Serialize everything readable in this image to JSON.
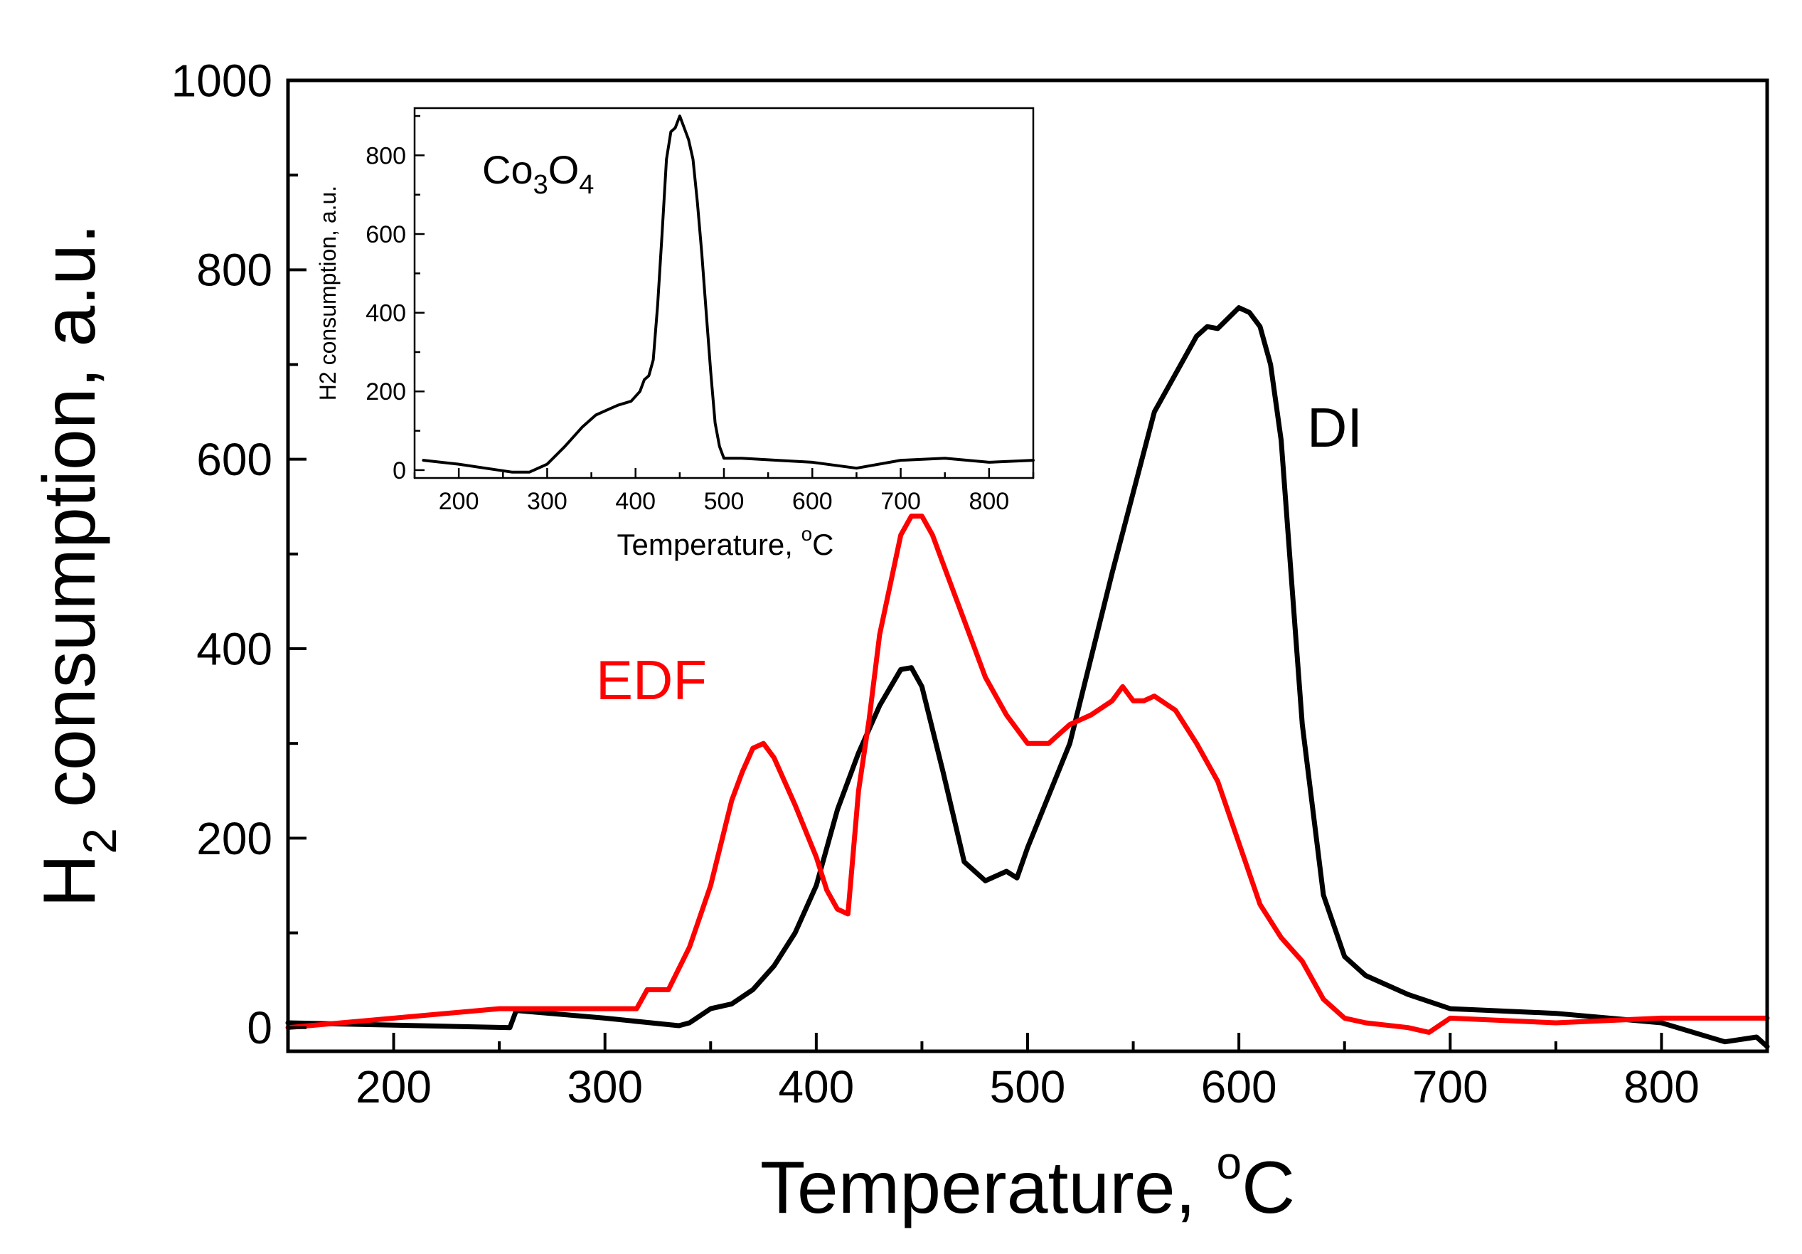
{
  "chart_data": [
    {
      "type": "line",
      "xlabel_main": "Temperature, ",
      "xlabel_sup": "o",
      "xlabel_unit": "C",
      "ylabel_main": "H",
      "ylabel_sub": "2",
      "ylabel_rest": " consumption, a.u.",
      "xlim": [
        150,
        850
      ],
      "ylim": [
        -25,
        1000
      ],
      "xticks": [
        "200",
        "300",
        "400",
        "500",
        "600",
        "700",
        "800"
      ],
      "yticks": [
        "0",
        "200",
        "400",
        "600",
        "800",
        "1000"
      ],
      "series": [
        {
          "name": "DI",
          "color": "#000000",
          "x": [
            150,
            255,
            258,
            300,
            335,
            340,
            350,
            360,
            370,
            380,
            390,
            400,
            410,
            420,
            430,
            440,
            445,
            450,
            460,
            470,
            480,
            490,
            495,
            500,
            520,
            540,
            560,
            570,
            580,
            585,
            590,
            600,
            605,
            610,
            615,
            620,
            625,
            630,
            640,
            650,
            660,
            680,
            700,
            750,
            800,
            830,
            845,
            850
          ],
          "values": [
            5,
            0,
            18,
            10,
            2,
            5,
            20,
            25,
            40,
            65,
            100,
            150,
            230,
            290,
            340,
            378,
            380,
            360,
            270,
            175,
            155,
            165,
            158,
            190,
            300,
            480,
            650,
            690,
            730,
            740,
            738,
            760,
            755,
            740,
            700,
            620,
            470,
            320,
            140,
            75,
            55,
            35,
            20,
            15,
            5,
            -15,
            -10,
            -20
          ]
        },
        {
          "name": "EDF",
          "color": "#ff0000",
          "x": [
            150,
            250,
            315,
            320,
            330,
            340,
            350,
            360,
            365,
            370,
            375,
            380,
            390,
            400,
            405,
            410,
            415,
            420,
            425,
            430,
            440,
            445,
            450,
            455,
            460,
            470,
            480,
            490,
            500,
            510,
            520,
            530,
            540,
            545,
            550,
            555,
            560,
            570,
            580,
            590,
            600,
            610,
            620,
            630,
            640,
            650,
            660,
            680,
            690,
            700,
            750,
            800,
            850
          ],
          "values": [
            0,
            20,
            20,
            40,
            40,
            85,
            150,
            240,
            270,
            295,
            300,
            285,
            235,
            180,
            145,
            125,
            120,
            250,
            325,
            415,
            520,
            540,
            540,
            520,
            490,
            430,
            370,
            330,
            300,
            300,
            320,
            330,
            345,
            360,
            345,
            345,
            350,
            335,
            300,
            260,
            195,
            130,
            95,
            70,
            30,
            10,
            5,
            0,
            -5,
            10,
            5,
            10,
            10
          ]
        }
      ],
      "annotations": [
        "DI",
        "EDF"
      ]
    },
    {
      "type": "line",
      "title_main": "Co",
      "title_sub1": "3",
      "title_mid": "O",
      "title_sub2": "4",
      "xlabel_main": "Temperature, ",
      "xlabel_sup": "o",
      "xlabel_unit": "C",
      "ylabel": "H2 consumption, a.u.",
      "xlim": [
        150,
        850
      ],
      "ylim": [
        -20,
        920
      ],
      "xticks": [
        "200",
        "300",
        "400",
        "500",
        "600",
        "700",
        "800"
      ],
      "yticks": [
        "0",
        "200",
        "400",
        "600",
        "800"
      ],
      "series": [
        {
          "name": "Co3O4",
          "color": "#000000",
          "x": [
            160,
            200,
            230,
            260,
            280,
            300,
            320,
            340,
            355,
            370,
            380,
            395,
            405,
            410,
            415,
            420,
            425,
            430,
            435,
            440,
            445,
            450,
            455,
            460,
            465,
            470,
            475,
            480,
            485,
            490,
            495,
            500,
            520,
            560,
            600,
            650,
            700,
            750,
            800,
            850
          ],
          "values": [
            25,
            15,
            5,
            -5,
            -5,
            15,
            60,
            110,
            140,
            155,
            165,
            175,
            200,
            230,
            240,
            280,
            420,
            600,
            790,
            860,
            870,
            900,
            870,
            840,
            790,
            680,
            550,
            400,
            250,
            120,
            60,
            30,
            30,
            25,
            20,
            5,
            25,
            30,
            20,
            25
          ]
        }
      ]
    }
  ]
}
